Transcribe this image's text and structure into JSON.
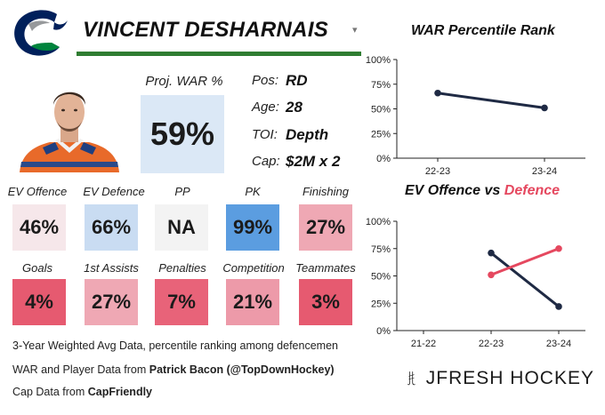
{
  "header": {
    "player_name": "VINCENT DESHARNAIS",
    "team_logo_icon": "canucks-orca-logo-icon",
    "caret": "▾",
    "accent_color": "#2f7d32"
  },
  "projection": {
    "label": "Proj. WAR %",
    "value": "59%",
    "tile_color": "#dbe8f6"
  },
  "info": [
    {
      "label": "Pos:",
      "value": "RD"
    },
    {
      "label": "Age:",
      "value": "28"
    },
    {
      "label": "TOI:",
      "value": "Depth"
    },
    {
      "label": "Cap:",
      "value": "$2M x 2"
    }
  ],
  "stats_row1": [
    {
      "label": "EV Offence",
      "value": "46%",
      "color": "#f6e7ea"
    },
    {
      "label": "EV Defence",
      "value": "66%",
      "color": "#c9dcf2"
    },
    {
      "label": "PP",
      "value": "NA",
      "color": "#f3f3f3"
    },
    {
      "label": "PK",
      "value": "99%",
      "color": "#5b9de0"
    },
    {
      "label": "Finishing",
      "value": "27%",
      "color": "#efa8b4"
    }
  ],
  "stats_row2": [
    {
      "label": "Goals",
      "value": "4%",
      "color": "#e65a70"
    },
    {
      "label": "1st Assists",
      "value": "27%",
      "color": "#efa8b4"
    },
    {
      "label": "Penalties",
      "value": "7%",
      "color": "#e86379"
    },
    {
      "label": "Competition",
      "value": "21%",
      "color": "#ed9aa9"
    },
    {
      "label": "Teammates",
      "value": "3%",
      "color": "#e65a70"
    }
  ],
  "footer": {
    "note": "3-Year Weighted Avg Data, percentile ranking among defencemen",
    "war_prefix": "WAR and Player Data from ",
    "war_source": "Patrick Bacon (@TopDownHockey)",
    "cap_prefix": "Cap Data from ",
    "cap_source": "CapFriendly"
  },
  "brand": {
    "text": "JFRESH HOCKEY",
    "icon": "jfresh-hockey-sticks-icon"
  },
  "chart_data": [
    {
      "type": "line",
      "title": "WAR Percentile Rank",
      "categories": [
        "22-23",
        "23-24"
      ],
      "series": [
        {
          "name": "WAR Percentile",
          "values": [
            66,
            51
          ],
          "color": "#1f2a44"
        }
      ],
      "ylim": [
        0,
        100
      ],
      "yticks": [
        "0%",
        "25%",
        "50%",
        "75%",
        "100%"
      ],
      "grid": false
    },
    {
      "type": "line",
      "title_part1": "EV Offence",
      "title_part2": "vs",
      "title_part3": "Defence",
      "categories": [
        "21-22",
        "22-23",
        "23-24"
      ],
      "series": [
        {
          "name": "EV Offence",
          "values": [
            null,
            71,
            22
          ],
          "color": "#1f2a44"
        },
        {
          "name": "EV Defence",
          "values": [
            null,
            51,
            75
          ],
          "color": "#e5485f"
        }
      ],
      "ylim": [
        0,
        100
      ],
      "yticks": [
        "0%",
        "25%",
        "50%",
        "75%",
        "100%"
      ],
      "grid": false
    }
  ]
}
